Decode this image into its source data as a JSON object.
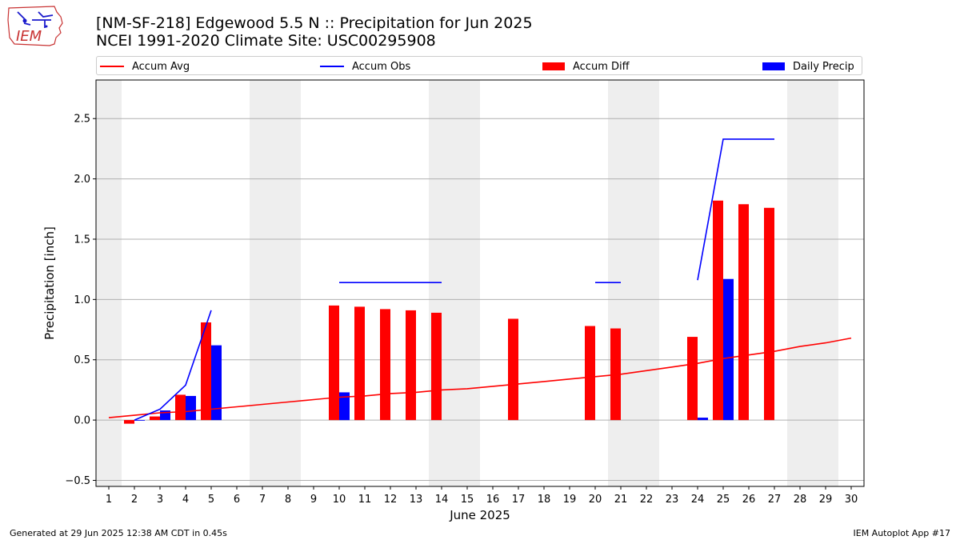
{
  "header": {
    "title_line1": "[NM-SF-218] Edgewood 5.5 N :: Precipitation for Jun 2025",
    "title_line2": "NCEI 1991-2020 Climate Site: USC00295908"
  },
  "logo": {
    "text": "IEM"
  },
  "footer": {
    "generated": "Generated at 29 Jun 2025 12:38 AM CDT in 0.45s",
    "app": "IEM Autoplot App #17"
  },
  "colors": {
    "avg": "#ff0000",
    "obs": "#0000ff",
    "diff": "#ff0000",
    "daily": "#0000ff",
    "weekend": "#eeeeee",
    "grid": "#b0b0b0"
  },
  "legend": {
    "accum_avg": "Accum Avg",
    "accum_obs": "Accum Obs",
    "accum_diff": "Accum Diff",
    "daily_precip": "Daily Precip"
  },
  "chart_data": {
    "type": "bar",
    "xlabel": "June 2025",
    "ylabel": "Precipitation [inch]",
    "xlim": [
      0.5,
      30.5
    ],
    "ylim": [
      -0.55,
      2.82
    ],
    "yticks": [
      -0.5,
      0.0,
      0.5,
      1.0,
      1.5,
      2.0,
      2.5
    ],
    "ytick_labels": [
      "−0.5",
      "0.0",
      "0.5",
      "1.0",
      "1.5",
      "2.0",
      "2.5"
    ],
    "days": [
      1,
      2,
      3,
      4,
      5,
      6,
      7,
      8,
      9,
      10,
      11,
      12,
      13,
      14,
      15,
      16,
      17,
      18,
      19,
      20,
      21,
      22,
      23,
      24,
      25,
      26,
      27,
      28,
      29,
      30
    ],
    "weekend_spans": [
      [
        0.5,
        1.5
      ],
      [
        6.5,
        8.5
      ],
      [
        13.5,
        15.5
      ],
      [
        20.5,
        22.5
      ],
      [
        27.5,
        29.5
      ]
    ],
    "grid": "horizontal",
    "legend_position": "top",
    "series": [
      {
        "name": "Accum Avg",
        "kind": "line",
        "values": [
          0.02,
          0.04,
          0.06,
          0.07,
          0.09,
          0.11,
          0.13,
          0.15,
          0.17,
          0.19,
          0.2,
          0.22,
          0.23,
          0.25,
          0.26,
          0.28,
          0.3,
          0.32,
          0.34,
          0.36,
          0.38,
          0.41,
          0.44,
          0.47,
          0.51,
          0.54,
          0.57,
          0.61,
          0.64,
          0.68
        ]
      },
      {
        "name": "Accum Obs",
        "kind": "line",
        "values": [
          null,
          0.0,
          0.09,
          0.29,
          0.91,
          null,
          null,
          null,
          null,
          1.14,
          1.14,
          1.14,
          1.14,
          1.14,
          null,
          null,
          null,
          null,
          null,
          1.14,
          1.14,
          null,
          null,
          1.16,
          2.33,
          2.33,
          2.33,
          null,
          null,
          null
        ]
      },
      {
        "name": "Accum Diff",
        "kind": "bar",
        "values": [
          null,
          -0.03,
          0.03,
          0.21,
          0.81,
          null,
          null,
          null,
          null,
          0.95,
          0.94,
          0.92,
          0.91,
          0.89,
          null,
          null,
          0.84,
          null,
          null,
          0.78,
          0.76,
          null,
          null,
          0.69,
          1.82,
          1.79,
          1.76,
          null,
          null,
          null
        ]
      },
      {
        "name": "Daily Precip",
        "kind": "bar",
        "values": [
          null,
          0.0,
          0.08,
          0.2,
          0.62,
          null,
          null,
          null,
          null,
          0.23,
          null,
          null,
          null,
          null,
          null,
          null,
          null,
          null,
          null,
          null,
          null,
          null,
          null,
          0.02,
          1.17,
          null,
          null,
          null,
          null,
          null
        ]
      }
    ]
  }
}
